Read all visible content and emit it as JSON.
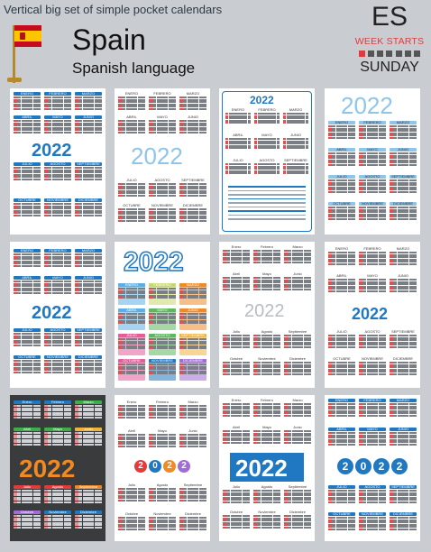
{
  "header": {
    "subtitle": "Vertical big set of simple pocket calendars",
    "country": "Spain",
    "language": "Spanish language",
    "code": "ES",
    "week_starts": "WEEK STARTS",
    "week_start_day": "SUNDAY"
  },
  "year": "2022",
  "months_upper": [
    "ENERO",
    "FEBRERO",
    "MARZO",
    "ABRIL",
    "MAYO",
    "JUNIO",
    "JULIO",
    "AGOSTO",
    "SEPTIEMBRE",
    "OCTUBRE",
    "NOVIEMBRE",
    "DICIEMBRE"
  ],
  "months_title": [
    "Enero",
    "Febrero",
    "Marzo",
    "Abril",
    "Mayo",
    "Junio",
    "Julio",
    "Agosto",
    "Septiembre",
    "Octubre",
    "Noviembre",
    "Diciembre"
  ],
  "colors": {
    "blue": "#1f78c1",
    "red": "#e23b3b",
    "lightblue": "#8ec5ea",
    "dark": "#3a3b3d",
    "orange": "#f08a24"
  }
}
